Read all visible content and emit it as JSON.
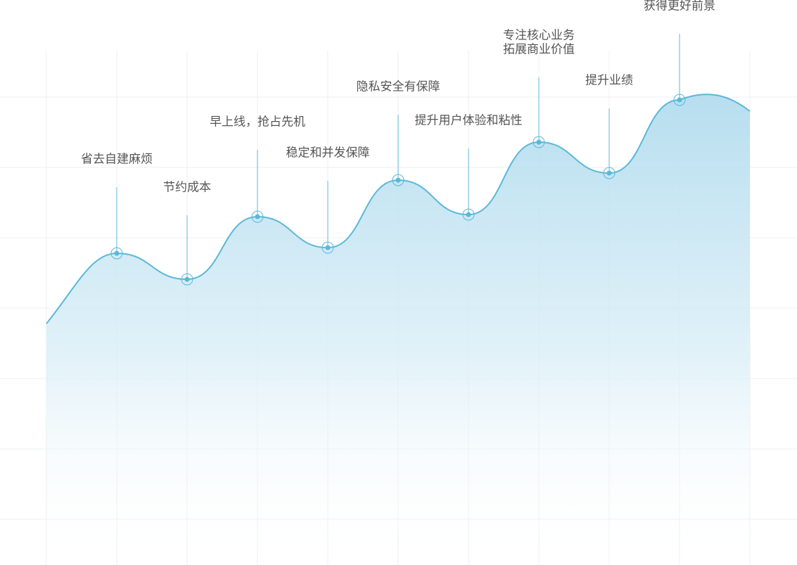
{
  "milestones": [
    {
      "lines": [
        "省去自建麻烦"
      ]
    },
    {
      "lines": [
        "节约成本"
      ]
    },
    {
      "lines": [
        "早上线，抢占先机"
      ]
    },
    {
      "lines": [
        "稳定和并发保障"
      ]
    },
    {
      "lines": [
        "隐私安全有保障"
      ]
    },
    {
      "lines": [
        "提升用户体验和粘性"
      ]
    },
    {
      "lines": [
        "专注核心业务",
        "拓展商业价值"
      ]
    },
    {
      "lines": [
        "提升业绩"
      ]
    },
    {
      "lines": [
        "获得更好前景"
      ]
    }
  ]
}
